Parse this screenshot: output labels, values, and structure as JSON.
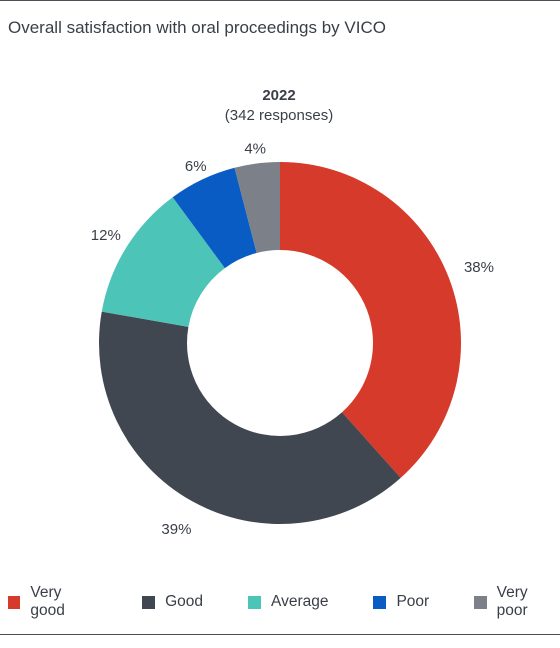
{
  "title": "Overall satisfaction with oral proceedings by VICO",
  "chart_data": {
    "type": "pie",
    "variant": "donut",
    "center_year": "2022",
    "center_note": "(342 responses)",
    "slices": [
      {
        "label": "Very good",
        "value": 38,
        "display": "38%",
        "color": "#d63a2b"
      },
      {
        "label": "Good",
        "value": 39,
        "display": "39%",
        "color": "#414751"
      },
      {
        "label": "Average",
        "value": 12,
        "display": "12%",
        "color": "#4cc4b8"
      },
      {
        "label": "Poor",
        "value": 6,
        "display": "6%",
        "color": "#0a5cc5"
      },
      {
        "label": "Very poor",
        "value": 4,
        "display": "4%",
        "color": "#7b8089"
      }
    ],
    "legend_position": "bottom",
    "start": "12 o'clock",
    "direction": "clockwise"
  }
}
